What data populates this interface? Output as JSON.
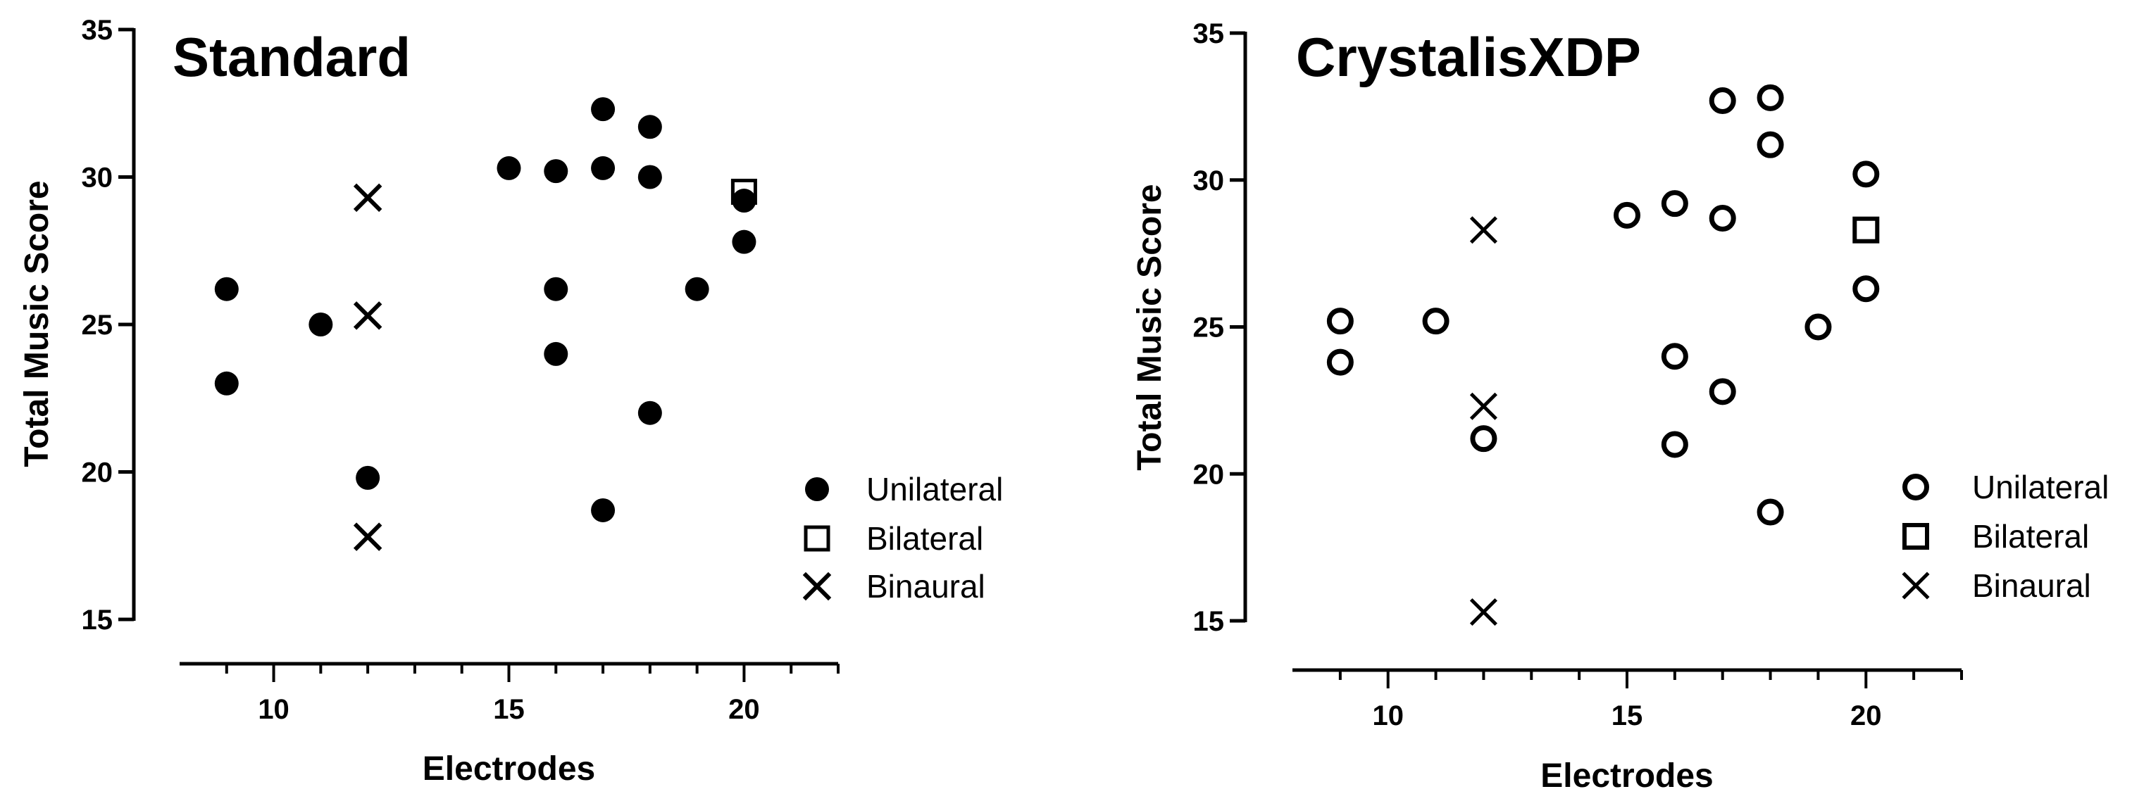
{
  "chart_data": [
    {
      "type": "scatter",
      "title": "Standard",
      "xlabel": "Electrodes",
      "ylabel": "Total Music Score",
      "xlim": [
        8,
        22
      ],
      "ylim": [
        15,
        35
      ],
      "xticks": [
        10,
        15,
        20
      ],
      "yticks": [
        15,
        20,
        25,
        30,
        35
      ],
      "legend_position": "bottom-right",
      "filled": true,
      "series": [
        {
          "name": "Unilateral",
          "marker": "circle",
          "points": [
            [
              9,
              26.2
            ],
            [
              9,
              23.0
            ],
            [
              11,
              25.0
            ],
            [
              12,
              19.8
            ],
            [
              15,
              30.3
            ],
            [
              16,
              30.2
            ],
            [
              16,
              26.2
            ],
            [
              16,
              24.0
            ],
            [
              17,
              32.3
            ],
            [
              17,
              30.3
            ],
            [
              17,
              18.7
            ],
            [
              18,
              31.7
            ],
            [
              18,
              30.0
            ],
            [
              18,
              22.0
            ],
            [
              19,
              26.2
            ],
            [
              20,
              29.2
            ],
            [
              20,
              27.8
            ]
          ]
        },
        {
          "name": "Bilateral",
          "marker": "square",
          "points": [
            [
              20,
              29.5
            ]
          ]
        },
        {
          "name": "Binaural",
          "marker": "cross",
          "points": [
            [
              12,
              29.3
            ],
            [
              12,
              25.3
            ],
            [
              12,
              17.8
            ]
          ]
        }
      ]
    },
    {
      "type": "scatter",
      "title": "CrystalisXDP",
      "xlabel": "Electrodes",
      "ylabel": "Total Music Score",
      "xlim": [
        8,
        22
      ],
      "ylim": [
        15,
        35
      ],
      "xticks": [
        10,
        15,
        20
      ],
      "yticks": [
        15,
        20,
        25,
        30,
        35
      ],
      "legend_position": "bottom-right",
      "filled": false,
      "series": [
        {
          "name": "Unilateral",
          "marker": "circle",
          "points": [
            [
              9,
              25.2
            ],
            [
              9,
              23.8
            ],
            [
              11,
              25.2
            ],
            [
              12,
              21.2
            ],
            [
              15,
              28.8
            ],
            [
              16,
              29.2
            ],
            [
              16,
              24.0
            ],
            [
              16,
              21.0
            ],
            [
              17,
              32.7
            ],
            [
              17,
              28.7
            ],
            [
              17,
              22.8
            ],
            [
              18,
              32.8
            ],
            [
              18,
              31.2
            ],
            [
              18,
              18.7
            ],
            [
              19,
              25.0
            ],
            [
              20,
              30.2
            ],
            [
              20,
              26.3
            ]
          ]
        },
        {
          "name": "Bilateral",
          "marker": "square",
          "points": [
            [
              20,
              28.3
            ]
          ]
        },
        {
          "name": "Binaural",
          "marker": "cross",
          "points": [
            [
              12,
              28.3
            ],
            [
              12,
              22.3
            ],
            [
              12,
              15.3
            ]
          ]
        }
      ]
    }
  ]
}
